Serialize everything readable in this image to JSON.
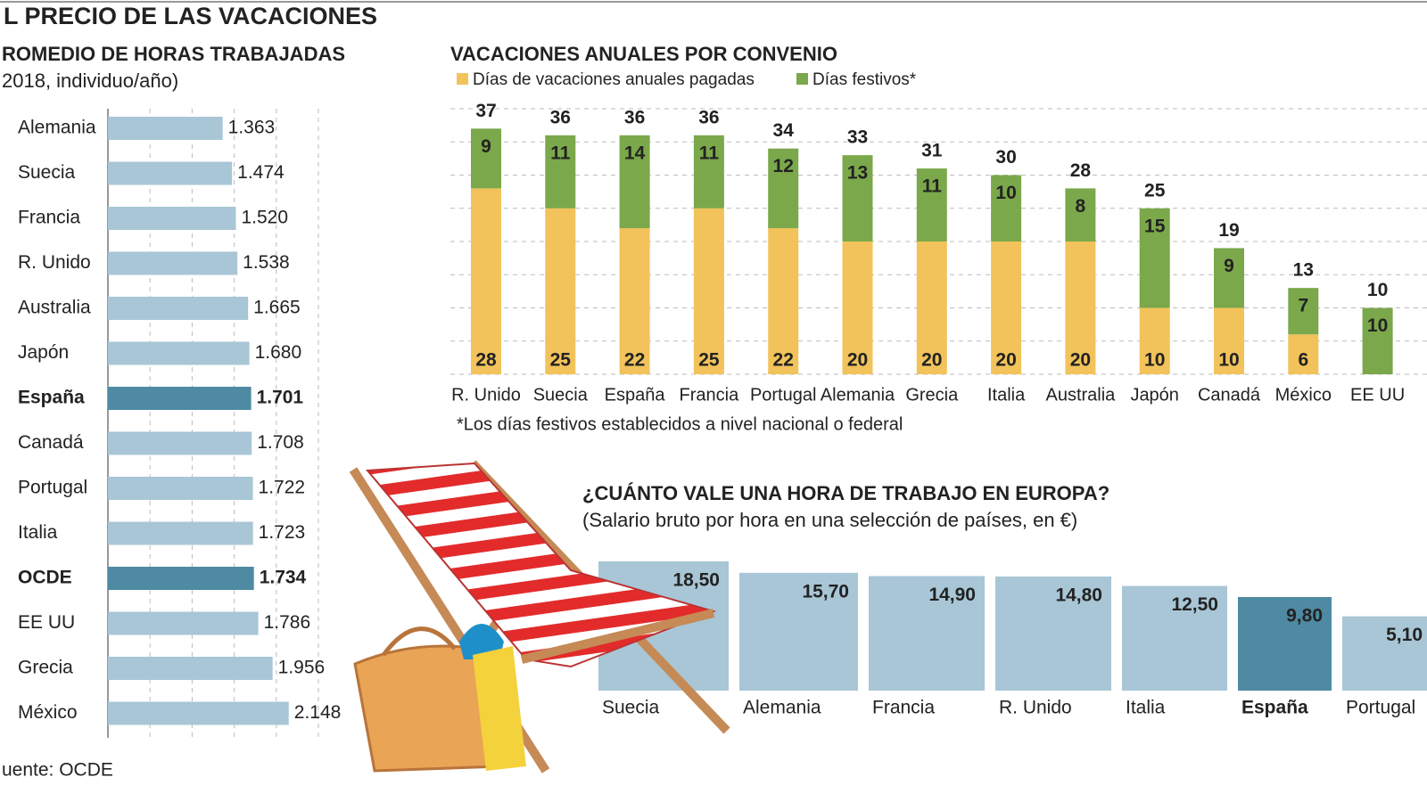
{
  "title": "L PRECIO DE LAS VACACIONES",
  "source": "uente: OCDE",
  "chart_data": [
    {
      "type": "barh",
      "title": "ROMEDIO DE HORAS TRABAJADAS",
      "subtitle": "2018, individuo/año)",
      "categories": [
        "Alemania",
        "Suecia",
        "Francia",
        "R. Unido",
        "Australia",
        "Japón",
        "España",
        "Canadá",
        "Portugal",
        "Italia",
        "OCDE",
        "EE UU",
        "Grecia",
        "México"
      ],
      "values": [
        1363,
        1474,
        1520,
        1538,
        1665,
        1680,
        1701,
        1708,
        1722,
        1723,
        1734,
        1786,
        1956,
        2148
      ],
      "value_labels": [
        "1.363",
        "1.474",
        "1.520",
        "1.538",
        "1.665",
        "1.680",
        "1.701",
        "1.708",
        "1.722",
        "1.723",
        "1.734",
        "1.786",
        "1.956",
        "2.148"
      ],
      "colors": [
        "#a8c6d6",
        "#a8c6d6",
        "#a8c6d6",
        "#a8c6d6",
        "#a8c6d6",
        "#a8c6d6",
        "#4e8aa1",
        "#a8c6d6",
        "#a8c6d6",
        "#a8c6d6",
        "#4e8aa1",
        "#a8c6d6",
        "#a8c6d6",
        "#a8c6d6"
      ],
      "label_colors": [
        "#222",
        "#222",
        "#222",
        "#222",
        "#222",
        "#222",
        "#d7262b",
        "#222",
        "#222",
        "#222",
        "#d7262b",
        "#222",
        "#222",
        "#222"
      ],
      "xlim": [
        0,
        2500
      ],
      "xticks": [
        0,
        500,
        1000,
        1500,
        2000,
        2500
      ],
      "grid": true
    },
    {
      "type": "stacked_bar",
      "title": "VACACIONES ANUALES POR CONVENIO",
      "categories": [
        "R. Unido",
        "Suecia",
        "España",
        "Francia",
        "Portugal",
        "Alemania",
        "Grecia",
        "Italia",
        "Australia",
        "Japón",
        "Canadá",
        "México",
        "EE UU"
      ],
      "series": [
        {
          "name": "Días de vacaciones anuales pagadas",
          "color": "#f2c35b",
          "values": [
            28,
            25,
            22,
            25,
            22,
            20,
            20,
            20,
            20,
            10,
            10,
            6,
            0
          ]
        },
        {
          "name": "Días festivos*",
          "color": "#7ba84b",
          "values": [
            9,
            11,
            14,
            11,
            12,
            13,
            11,
            10,
            8,
            15,
            9,
            7,
            10
          ]
        }
      ],
      "totals": [
        37,
        36,
        36,
        36,
        34,
        33,
        31,
        30,
        28,
        25,
        19,
        13,
        10
      ],
      "total_label_colors": [
        "#222",
        "#222",
        "#d7262b",
        "#222",
        "#222",
        "#222",
        "#222",
        "#222",
        "#222",
        "#222",
        "#222",
        "#222",
        "#222"
      ],
      "note": "*Los días festivos establecidos a nivel nacional o federal",
      "ylim": [
        0,
        40
      ],
      "yticks": [
        0,
        5,
        10,
        15,
        20,
        25,
        30,
        35,
        40
      ],
      "grid": true
    },
    {
      "type": "bar",
      "title": "¿CUÁNTO VALE UNA HORA DE TRABAJO EN EUROPA?",
      "subtitle": "(Salario bruto por hora en una selección de países, en €)",
      "categories": [
        "Suecia",
        "Alemania",
        "Francia",
        "R. Unido",
        "Italia",
        "España",
        "Portugal"
      ],
      "values": [
        18.5,
        15.7,
        14.9,
        14.8,
        12.5,
        9.8,
        5.1
      ],
      "value_labels": [
        "18,50",
        "15,70",
        "14,90",
        "14,80",
        "12,50",
        "9,80",
        "5,10"
      ],
      "colors": [
        "#a8c6d6",
        "#a8c6d6",
        "#a8c6d6",
        "#a8c6d6",
        "#a8c6d6",
        "#4e8aa1",
        "#a8c6d6"
      ],
      "label_colors": [
        "#222",
        "#222",
        "#222",
        "#222",
        "#222",
        "#fff",
        "#222"
      ],
      "ylim": [
        -13,
        20
      ]
    }
  ]
}
